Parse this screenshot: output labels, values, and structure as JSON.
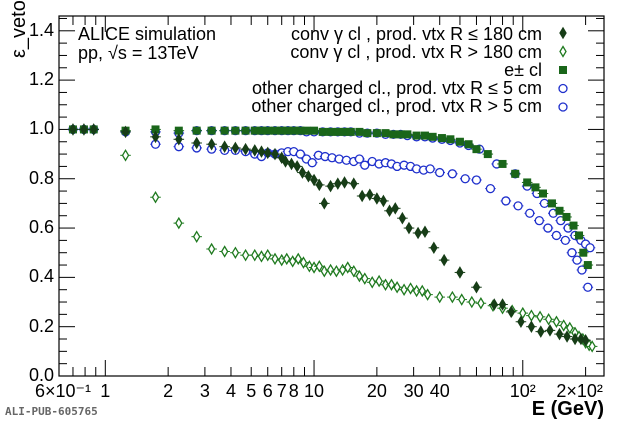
{
  "chart_data": {
    "type": "scatter",
    "title": "",
    "xlabel": "E (GeV)",
    "ylabel": "ε_veto",
    "xscale": "log",
    "xlim": [
      0.6,
      245
    ],
    "ylim": [
      0,
      1.46
    ],
    "x_tick_labels": [
      "6×10⁻¹",
      "1",
      "2",
      "3",
      "4",
      "5",
      "6",
      "7",
      "8",
      "10",
      "20",
      "30",
      "40",
      "10²",
      "2×10²"
    ],
    "x_tick_values": [
      0.6,
      1,
      2,
      3,
      4,
      5,
      6,
      7,
      8,
      10,
      20,
      30,
      40,
      100,
      200
    ],
    "y_tick_labels": [
      "0.0",
      "0.2",
      "0.4",
      "0.6",
      "0.8",
      "1.0",
      "1.2",
      "1.4"
    ],
    "y_tick_values": [
      0,
      0.2,
      0.4,
      0.6,
      0.8,
      1.0,
      1.2,
      1.4
    ],
    "annotations": [
      "ALICE simulation",
      "pp, √s = 13TeV"
    ],
    "watermark": "ALI-PUB-605765",
    "legend_position": "top-right",
    "series": [
      {
        "name": "conv γ cl , prod. vtx R ≤ 180 cm",
        "marker": "diamond-filled",
        "color": "#173d17",
        "points": [
          [
            0.7,
            1.0
          ],
          [
            0.79,
            1.0
          ],
          [
            0.88,
            1.0
          ],
          [
            1.25,
            0.99
          ],
          [
            1.74,
            0.97
          ],
          [
            2.25,
            0.96
          ],
          [
            2.74,
            0.945
          ],
          [
            3.23,
            0.94
          ],
          [
            3.73,
            0.93
          ],
          [
            4.2,
            0.925
          ],
          [
            4.7,
            0.92
          ],
          [
            5.2,
            0.915
          ],
          [
            5.6,
            0.91
          ],
          [
            6.0,
            0.905
          ],
          [
            6.5,
            0.9
          ],
          [
            7.0,
            0.885
          ],
          [
            7.3,
            0.87
          ],
          [
            7.8,
            0.86
          ],
          [
            8.3,
            0.85
          ],
          [
            8.8,
            0.825
          ],
          [
            9.4,
            0.81
          ],
          [
            10.0,
            0.795
          ],
          [
            10.6,
            0.775
          ],
          [
            11.2,
            0.7
          ],
          [
            12.0,
            0.77
          ],
          [
            13.0,
            0.78
          ],
          [
            14.0,
            0.785
          ],
          [
            15.5,
            0.78
          ],
          [
            17.0,
            0.73
          ],
          [
            18.5,
            0.735
          ],
          [
            20.0,
            0.72
          ],
          [
            21.5,
            0.71
          ],
          [
            23.0,
            0.67
          ],
          [
            24.5,
            0.68
          ],
          [
            26.5,
            0.64
          ],
          [
            28.5,
            0.6
          ],
          [
            31.5,
            0.58
          ],
          [
            34.0,
            0.585
          ],
          [
            37.5,
            0.52
          ],
          [
            42.0,
            0.47
          ],
          [
            50.0,
            0.42
          ],
          [
            60.0,
            0.36
          ],
          [
            73.0,
            0.29
          ],
          [
            80.0,
            0.29
          ],
          [
            88.0,
            0.26
          ],
          [
            98.0,
            0.22
          ],
          [
            110.0,
            0.2
          ],
          [
            122.0,
            0.18
          ],
          [
            135.0,
            0.185
          ],
          [
            150.0,
            0.17
          ],
          [
            163.0,
            0.16
          ],
          [
            178.0,
            0.15
          ],
          [
            190.0,
            0.15
          ],
          [
            200.0,
            0.145
          ]
        ]
      },
      {
        "name": "conv γ cl , prod. vtx R > 180 cm",
        "marker": "diamond-open",
        "color": "#1f7a1f",
        "points": [
          [
            1.25,
            0.895
          ],
          [
            1.74,
            0.725
          ],
          [
            2.25,
            0.62
          ],
          [
            2.74,
            0.565
          ],
          [
            3.23,
            0.515
          ],
          [
            3.73,
            0.505
          ],
          [
            4.2,
            0.5
          ],
          [
            4.7,
            0.49
          ],
          [
            5.2,
            0.49
          ],
          [
            5.6,
            0.485
          ],
          [
            6.0,
            0.49
          ],
          [
            6.5,
            0.475
          ],
          [
            7.0,
            0.47
          ],
          [
            7.4,
            0.475
          ],
          [
            7.9,
            0.465
          ],
          [
            8.4,
            0.475
          ],
          [
            8.9,
            0.46
          ],
          [
            9.5,
            0.445
          ],
          [
            10.0,
            0.44
          ],
          [
            10.6,
            0.445
          ],
          [
            11.2,
            0.425
          ],
          [
            12.0,
            0.43
          ],
          [
            12.8,
            0.425
          ],
          [
            13.7,
            0.43
          ],
          [
            14.5,
            0.44
          ],
          [
            15.5,
            0.425
          ],
          [
            16.5,
            0.405
          ],
          [
            17.5,
            0.395
          ],
          [
            19.0,
            0.38
          ],
          [
            20.5,
            0.385
          ],
          [
            22.0,
            0.37
          ],
          [
            23.5,
            0.37
          ],
          [
            25.0,
            0.36
          ],
          [
            27.0,
            0.35
          ],
          [
            29.0,
            0.355
          ],
          [
            31.0,
            0.345
          ],
          [
            33.0,
            0.345
          ],
          [
            35.0,
            0.33
          ],
          [
            40.0,
            0.32
          ],
          [
            46.0,
            0.32
          ],
          [
            51.0,
            0.31
          ],
          [
            57.0,
            0.3
          ],
          [
            63.0,
            0.295
          ],
          [
            72.0,
            0.285
          ],
          [
            80.0,
            0.275
          ],
          [
            89.0,
            0.265
          ],
          [
            100.0,
            0.255
          ],
          [
            110.0,
            0.245
          ],
          [
            121.0,
            0.24
          ],
          [
            133.0,
            0.23
          ],
          [
            145.0,
            0.22
          ],
          [
            157.0,
            0.205
          ],
          [
            168.0,
            0.195
          ],
          [
            178.0,
            0.175
          ],
          [
            186.0,
            0.16
          ],
          [
            194.0,
            0.15
          ],
          [
            200.0,
            0.135
          ],
          [
            208.0,
            0.125
          ],
          [
            215.0,
            0.12
          ]
        ]
      },
      {
        "name": "e± cl",
        "marker": "square-filled",
        "color": "#1a661a",
        "points": [
          [
            0.7,
            1.0
          ],
          [
            0.79,
            1.0
          ],
          [
            0.88,
            1.0
          ],
          [
            1.25,
            0.995
          ],
          [
            1.74,
            1.0
          ],
          [
            2.25,
            0.995
          ],
          [
            2.74,
            0.995
          ],
          [
            3.23,
            0.995
          ],
          [
            3.73,
            0.995
          ],
          [
            4.2,
            0.995
          ],
          [
            4.7,
            0.995
          ],
          [
            5.2,
            0.995
          ],
          [
            5.6,
            0.995
          ],
          [
            6.0,
            0.995
          ],
          [
            6.5,
            0.995
          ],
          [
            7.0,
            0.995
          ],
          [
            7.5,
            0.995
          ],
          [
            8.0,
            0.995
          ],
          [
            8.6,
            0.995
          ],
          [
            9.2,
            0.995
          ],
          [
            10.0,
            0.995
          ],
          [
            11.0,
            0.99
          ],
          [
            12.0,
            0.99
          ],
          [
            13.0,
            0.99
          ],
          [
            14.0,
            0.99
          ],
          [
            15.0,
            0.99
          ],
          [
            16.5,
            0.99
          ],
          [
            18.0,
            0.985
          ],
          [
            20.0,
            0.985
          ],
          [
            22.0,
            0.985
          ],
          [
            24.0,
            0.98
          ],
          [
            26.0,
            0.98
          ],
          [
            28.0,
            0.98
          ],
          [
            31.0,
            0.975
          ],
          [
            34.0,
            0.975
          ],
          [
            37.0,
            0.97
          ],
          [
            41.0,
            0.965
          ],
          [
            45.0,
            0.96
          ],
          [
            50.0,
            0.95
          ],
          [
            55.0,
            0.94
          ],
          [
            60.0,
            0.92
          ],
          [
            68.0,
            0.9
          ],
          [
            80.0,
            0.86
          ],
          [
            92.0,
            0.82
          ],
          [
            105.0,
            0.785
          ],
          [
            115.0,
            0.765
          ],
          [
            125.0,
            0.74
          ],
          [
            138.0,
            0.7
          ],
          [
            150.0,
            0.67
          ],
          [
            162.0,
            0.645
          ],
          [
            175.0,
            0.61
          ],
          [
            186.0,
            0.57
          ],
          [
            195.0,
            0.5
          ],
          [
            205.0,
            0.45
          ]
        ]
      },
      {
        "name": "other charged cl., prod. vtx R ≤ 5 cm",
        "marker": "circle-open",
        "color": "#1e2fcc",
        "points": [
          [
            0.7,
            1.0
          ],
          [
            0.79,
            1.0
          ],
          [
            0.88,
            1.0
          ],
          [
            1.25,
            0.99
          ],
          [
            1.74,
            0.99
          ],
          [
            2.25,
            0.985
          ],
          [
            2.74,
            0.995
          ],
          [
            3.23,
            0.995
          ],
          [
            3.73,
            0.995
          ],
          [
            4.2,
            0.995
          ],
          [
            4.7,
            0.995
          ],
          [
            5.2,
            0.995
          ],
          [
            5.6,
            0.995
          ],
          [
            6.0,
            0.995
          ],
          [
            6.5,
            0.995
          ],
          [
            7.0,
            0.995
          ],
          [
            7.5,
            0.995
          ],
          [
            8.0,
            0.995
          ],
          [
            8.6,
            0.995
          ],
          [
            9.2,
            0.99
          ],
          [
            10.0,
            0.99
          ],
          [
            11.0,
            0.99
          ],
          [
            12.0,
            0.99
          ],
          [
            13.0,
            0.99
          ],
          [
            14.0,
            0.99
          ],
          [
            15.0,
            0.99
          ],
          [
            16.5,
            0.985
          ],
          [
            18.0,
            0.985
          ],
          [
            20.0,
            0.985
          ],
          [
            22.0,
            0.98
          ],
          [
            24.0,
            0.98
          ],
          [
            26.0,
            0.98
          ],
          [
            28.0,
            0.975
          ],
          [
            31.0,
            0.97
          ],
          [
            34.0,
            0.97
          ],
          [
            37.0,
            0.965
          ],
          [
            41.0,
            0.96
          ],
          [
            45.0,
            0.955
          ],
          [
            50.0,
            0.945
          ],
          [
            55.0,
            0.935
          ],
          [
            62.0,
            0.92
          ],
          [
            75.0,
            0.86
          ],
          [
            92.0,
            0.82
          ],
          [
            105.0,
            0.77
          ],
          [
            117.0,
            0.74
          ],
          [
            127.0,
            0.7
          ],
          [
            140.0,
            0.66
          ],
          [
            152.0,
            0.63
          ],
          [
            165.0,
            0.6
          ],
          [
            178.0,
            0.57
          ],
          [
            190.0,
            0.55
          ],
          [
            200.0,
            0.535
          ],
          [
            210.0,
            0.52
          ]
        ]
      },
      {
        "name": "other charged cl., prod. vtx R > 5 cm",
        "marker": "circle-open",
        "color": "#1e2fcc",
        "points": [
          [
            1.74,
            0.94
          ],
          [
            2.25,
            0.93
          ],
          [
            2.74,
            0.925
          ],
          [
            3.23,
            0.92
          ],
          [
            3.73,
            0.915
          ],
          [
            4.2,
            0.915
          ],
          [
            4.7,
            0.91
          ],
          [
            5.2,
            0.9
          ],
          [
            5.6,
            0.89
          ],
          [
            6.0,
            0.905
          ],
          [
            6.5,
            0.9
          ],
          [
            7.0,
            0.905
          ],
          [
            7.5,
            0.91
          ],
          [
            8.0,
            0.91
          ],
          [
            8.6,
            0.9
          ],
          [
            9.2,
            0.88
          ],
          [
            9.8,
            0.865
          ],
          [
            10.5,
            0.895
          ],
          [
            11.3,
            0.89
          ],
          [
            12.2,
            0.885
          ],
          [
            13.2,
            0.88
          ],
          [
            14.3,
            0.875
          ],
          [
            15.5,
            0.87
          ],
          [
            16.5,
            0.88
          ],
          [
            17.5,
            0.855
          ],
          [
            19.0,
            0.87
          ],
          [
            20.5,
            0.86
          ],
          [
            22.0,
            0.865
          ],
          [
            23.5,
            0.86
          ],
          [
            25.0,
            0.85
          ],
          [
            27.0,
            0.855
          ],
          [
            29.0,
            0.85
          ],
          [
            31.0,
            0.84
          ],
          [
            33.5,
            0.835
          ],
          [
            36.0,
            0.84
          ],
          [
            40.0,
            0.825
          ],
          [
            46.0,
            0.82
          ],
          [
            53.0,
            0.8
          ],
          [
            60.0,
            0.795
          ],
          [
            70.0,
            0.76
          ],
          [
            83.0,
            0.71
          ],
          [
            95.0,
            0.69
          ],
          [
            108.0,
            0.66
          ],
          [
            120.0,
            0.63
          ],
          [
            132.0,
            0.6
          ],
          [
            145.0,
            0.57
          ],
          [
            160.0,
            0.55
          ],
          [
            172.0,
            0.5
          ],
          [
            182.0,
            0.47
          ],
          [
            192.0,
            0.43
          ],
          [
            205.0,
            0.36
          ]
        ]
      }
    ]
  }
}
